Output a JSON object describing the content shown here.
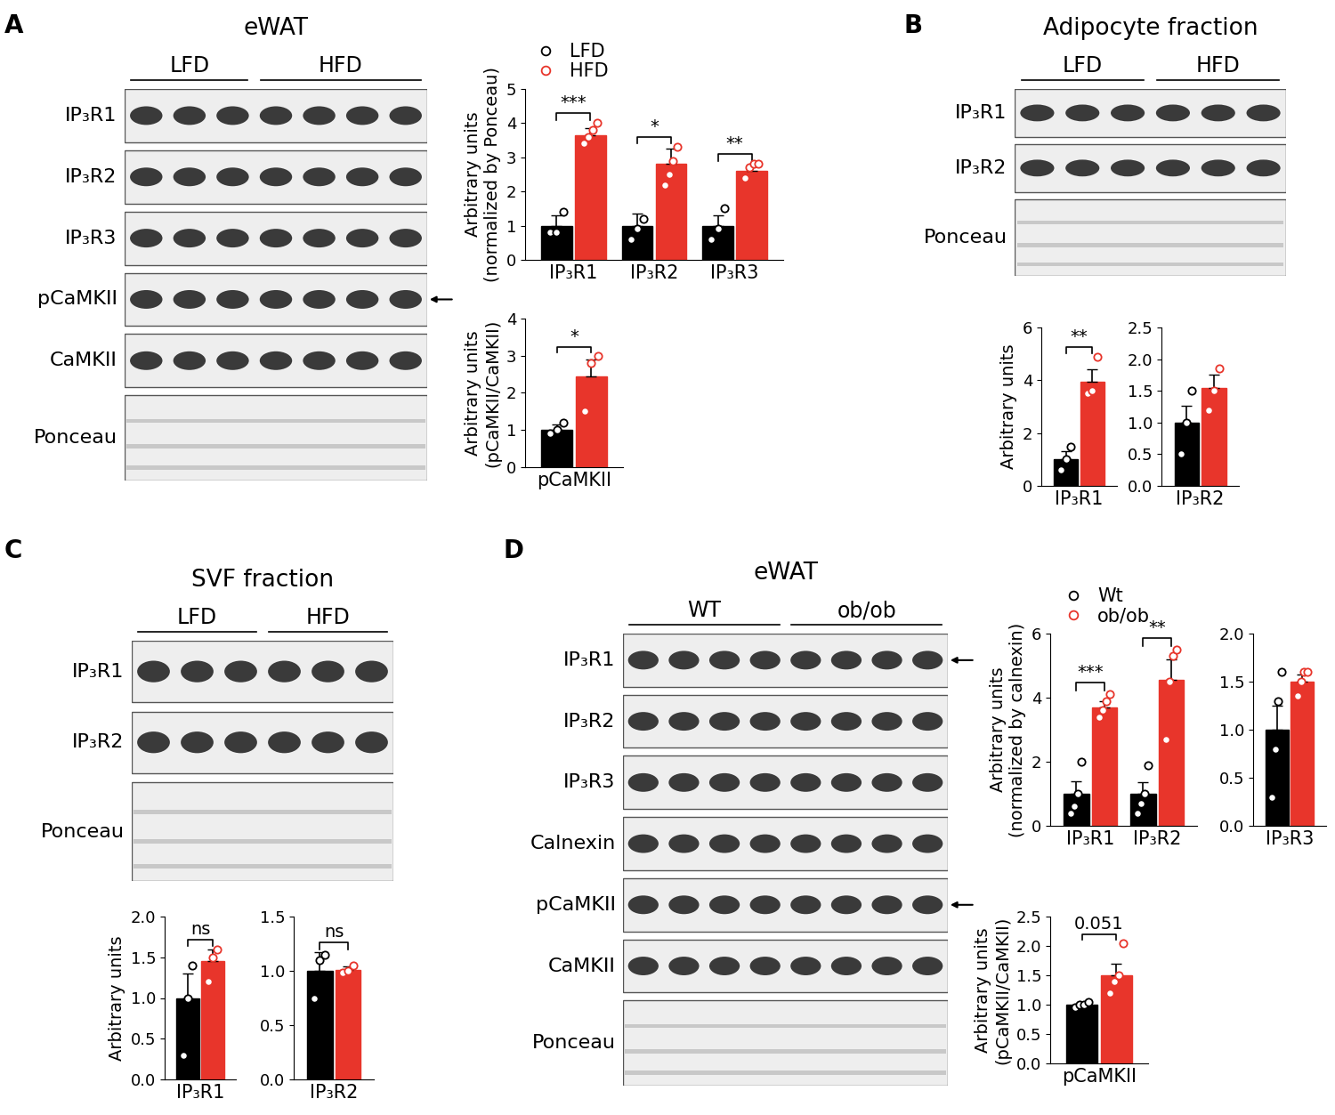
{
  "panel_letters": [
    "A",
    "B",
    "C",
    "D"
  ],
  "blots": [
    {
      "panel": "A",
      "title": "eWAT",
      "groups": [
        {
          "name": "LFD",
          "lanes": 3
        },
        {
          "name": "HFD",
          "lanes": 4
        }
      ],
      "rows": [
        "IP₃R1",
        "IP₃R2",
        "IP₃R3",
        "pCaMKII",
        "CaMKII",
        "Ponceau"
      ],
      "arrows": [
        "pCaMKII"
      ]
    },
    {
      "panel": "B",
      "title": "Adipocyte fraction",
      "groups": [
        {
          "name": "LFD",
          "lanes": 3
        },
        {
          "name": "HFD",
          "lanes": 3
        }
      ],
      "rows": [
        "IP₃R1",
        "IP₃R2",
        "Ponceau"
      ],
      "arrows": []
    },
    {
      "panel": "C",
      "title": "SVF fraction",
      "groups": [
        {
          "name": "LFD",
          "lanes": 3
        },
        {
          "name": "HFD",
          "lanes": 3
        }
      ],
      "rows": [
        "IP₃R1",
        "IP₃R2",
        "Ponceau"
      ],
      "arrows": []
    },
    {
      "panel": "D",
      "title": "eWAT",
      "groups": [
        {
          "name": "WT",
          "lanes": 4
        },
        {
          "name": "ob/ob",
          "lanes": 4
        }
      ],
      "rows": [
        "IP₃R1",
        "IP₃R2",
        "IP₃R3",
        "Calnexin",
        "pCaMKII",
        "CaMKII",
        "Ponceau"
      ],
      "arrows": [
        "IP₃R1",
        "pCaMKII"
      ]
    }
  ],
  "chart_data": [
    {
      "type": "bar",
      "ylabel": "Arbitrary units\n(normalized by Ponceau)",
      "legend": "upper left",
      "categories": [
        "IP₃R1",
        "IP₃R2",
        "IP₃R3"
      ],
      "ylim": [
        0,
        5
      ],
      "yticks": [
        0,
        1,
        2,
        3,
        4,
        5
      ],
      "series": [
        {
          "name": "LFD",
          "color": "#000000",
          "values": [
            1.0,
            1.0,
            1.0
          ],
          "errors": [
            0.3,
            0.35,
            0.3
          ],
          "points": [
            [
              0.8,
              0.8,
              1.4
            ],
            [
              0.6,
              0.9,
              1.2
            ],
            [
              0.6,
              0.9,
              1.5
            ]
          ]
        },
        {
          "name": "HFD",
          "color": "#e8352b",
          "values": [
            3.65,
            2.8,
            2.6
          ],
          "errors": [
            0.2,
            0.45,
            0.15
          ],
          "points": [
            [
              3.4,
              3.6,
              3.8,
              4.0
            ],
            [
              2.2,
              2.5,
              2.9,
              3.3
            ],
            [
              2.4,
              2.7,
              2.8,
              2.8
            ]
          ]
        }
      ],
      "significance": [
        {
          "category": "IP₃R1",
          "text": "***"
        },
        {
          "category": "IP₃R2",
          "text": "*"
        },
        {
          "category": "IP₃R3",
          "text": "**"
        }
      ]
    },
    {
      "type": "bar",
      "ylabel": "Arbitrary units\n(pCaMKII/CaMKII)",
      "categories": [
        "pCaMKII"
      ],
      "ylim": [
        0,
        4
      ],
      "yticks": [
        0,
        1,
        2,
        3,
        4
      ],
      "series": [
        {
          "name": "LFD",
          "color": "#000000",
          "values": [
            1.0
          ],
          "errors": [
            0.15
          ],
          "points": [
            [
              0.9,
              1.0,
              1.2
            ]
          ]
        },
        {
          "name": "HFD",
          "color": "#e8352b",
          "values": [
            2.45
          ],
          "errors": [
            0.45
          ],
          "points": [
            [
              1.5,
              2.8,
              3.0
            ]
          ]
        }
      ],
      "significance": [
        {
          "category": "pCaMKII",
          "text": "*"
        }
      ]
    },
    {
      "type": "bar",
      "ylabel": "Arbitrary units",
      "categories": [
        "IP₃R1"
      ],
      "ylim": [
        0,
        6
      ],
      "yticks": [
        0,
        2,
        4,
        6
      ],
      "series": [
        {
          "name": "LFD",
          "color": "#000000",
          "values": [
            1.0
          ],
          "errors": [
            0.3
          ],
          "points": [
            [
              0.6,
              1.0,
              1.5
            ]
          ]
        },
        {
          "name": "HFD",
          "color": "#e8352b",
          "values": [
            3.95
          ],
          "errors": [
            0.45
          ],
          "points": [
            [
              3.5,
              3.6,
              4.9
            ]
          ]
        }
      ],
      "significance": [
        {
          "category": "IP₃R1",
          "text": "**"
        }
      ]
    },
    {
      "type": "bar",
      "categories": [
        "IP₃R2"
      ],
      "ylim": [
        0,
        2.5
      ],
      "yticks": [
        {
          "value": 0,
          "label": "0.0"
        },
        0.5,
        {
          "value": 1,
          "label": "1.0"
        },
        1.5,
        {
          "value": 2,
          "label": "2.0"
        },
        2.5
      ],
      "series": [
        {
          "name": "LFD",
          "color": "#000000",
          "values": [
            1.0
          ],
          "errors": [
            0.27
          ],
          "points": [
            [
              0.5,
              1.0,
              1.5
            ]
          ]
        },
        {
          "name": "HFD",
          "color": "#e8352b",
          "values": [
            1.55
          ],
          "errors": [
            0.2
          ],
          "points": [
            [
              1.2,
              1.5,
              1.85
            ]
          ]
        }
      ],
      "significance": []
    },
    {
      "type": "bar",
      "ylabel": "Arbitrary units",
      "categories": [
        "IP₃R1"
      ],
      "ylim": [
        0,
        2
      ],
      "yticks": [
        {
          "value": 0,
          "label": "0.0"
        },
        0.5,
        {
          "value": 1,
          "label": "1.0"
        },
        1.5,
        {
          "value": 2,
          "label": "2.0"
        }
      ],
      "series": [
        {
          "name": "LFD",
          "color": "#000000",
          "values": [
            1.0
          ],
          "errors": [
            0.3
          ],
          "points": [
            [
              0.3,
              1.0,
              1.4
            ]
          ]
        },
        {
          "name": "HFD",
          "color": "#e8352b",
          "values": [
            1.45
          ],
          "errors": [
            0.15
          ],
          "points": [
            [
              1.2,
              1.5,
              1.6
            ]
          ]
        }
      ],
      "significance": [
        {
          "category": "IP₃R1",
          "text": "ns"
        }
      ]
    },
    {
      "type": "bar",
      "categories": [
        "IP₃R2"
      ],
      "ylim": [
        0,
        1.5
      ],
      "yticks": [
        {
          "value": 0,
          "label": "0.0"
        },
        0.5,
        {
          "value": 1,
          "label": "1.0"
        },
        1.5
      ],
      "series": [
        {
          "name": "LFD",
          "color": "#000000",
          "values": [
            1.0
          ],
          "errors": [
            0.17
          ],
          "points": [
            [
              0.75,
              1.1,
              1.15
            ]
          ]
        },
        {
          "name": "HFD",
          "color": "#e8352b",
          "values": [
            1.01
          ],
          "errors": [
            0.03
          ],
          "points": [
            [
              0.98,
              1.0,
              1.05
            ]
          ]
        }
      ],
      "significance": [
        {
          "category": "IP₃R2",
          "text": "ns"
        }
      ]
    },
    {
      "type": "bar",
      "ylabel": "Arbitrary units\n(normalized by calnexin)",
      "legend": "upper left",
      "categories": [
        "IP₃R1",
        "IP₃R2"
      ],
      "ylim": [
        0,
        6
      ],
      "yticks": [
        0,
        2,
        4,
        6
      ],
      "series": [
        {
          "name": "Wt",
          "color": "#000000",
          "values": [
            1.0,
            1.0
          ],
          "errors": [
            0.4,
            0.35
          ],
          "points": [
            [
              0.4,
              0.6,
              1.0,
              2.0
            ],
            [
              0.4,
              0.7,
              1.0,
              1.9
            ]
          ]
        },
        {
          "name": "ob/ob",
          "color": "#e8352b",
          "values": [
            3.7,
            4.55
          ],
          "errors": [
            0.2,
            0.65
          ],
          "points": [
            [
              3.4,
              3.6,
              3.9,
              4.1
            ],
            [
              2.7,
              4.5,
              5.3,
              5.5
            ]
          ]
        }
      ],
      "significance": [
        {
          "category": "IP₃R1",
          "text": "***"
        },
        {
          "category": "IP₃R2",
          "text": "**"
        }
      ]
    },
    {
      "type": "bar",
      "categories": [
        "IP₃R3"
      ],
      "ylim": [
        0,
        2
      ],
      "yticks": [
        {
          "value": 0,
          "label": "0.0"
        },
        0.5,
        {
          "value": 1,
          "label": "1.0"
        },
        1.5,
        {
          "value": 2,
          "label": "2.0"
        }
      ],
      "series": [
        {
          "name": "Wt",
          "color": "#000000",
          "values": [
            1.0
          ],
          "errors": [
            0.25
          ],
          "points": [
            [
              0.3,
              0.8,
              1.3,
              1.6
            ]
          ]
        },
        {
          "name": "ob/ob",
          "color": "#e8352b",
          "values": [
            1.5
          ],
          "errors": [
            0.07
          ],
          "points": [
            [
              1.35,
              1.5,
              1.6,
              1.6
            ]
          ]
        }
      ],
      "significance": []
    },
    {
      "type": "bar",
      "ylabel": "Arbitrary units\n(pCaMKII/CaMKII)",
      "categories": [
        "pCaMKII"
      ],
      "ylim": [
        0,
        2.5
      ],
      "yticks": [
        {
          "value": 0,
          "label": "0.0"
        },
        0.5,
        {
          "value": 1,
          "label": "1.0"
        },
        1.5,
        {
          "value": 2,
          "label": "2.0"
        },
        2.5
      ],
      "series": [
        {
          "name": "Wt",
          "color": "#000000",
          "values": [
            1.0
          ],
          "errors": [
            0.03
          ],
          "points": [
            [
              0.95,
              1.0,
              1.0,
              1.05
            ]
          ]
        },
        {
          "name": "ob/ob",
          "color": "#e8352b",
          "values": [
            1.5
          ],
          "errors": [
            0.2
          ],
          "points": [
            [
              1.2,
              1.4,
              1.5,
              2.05
            ]
          ]
        }
      ],
      "significance": [
        {
          "category": "pCaMKII",
          "text": "0.051"
        }
      ]
    }
  ]
}
